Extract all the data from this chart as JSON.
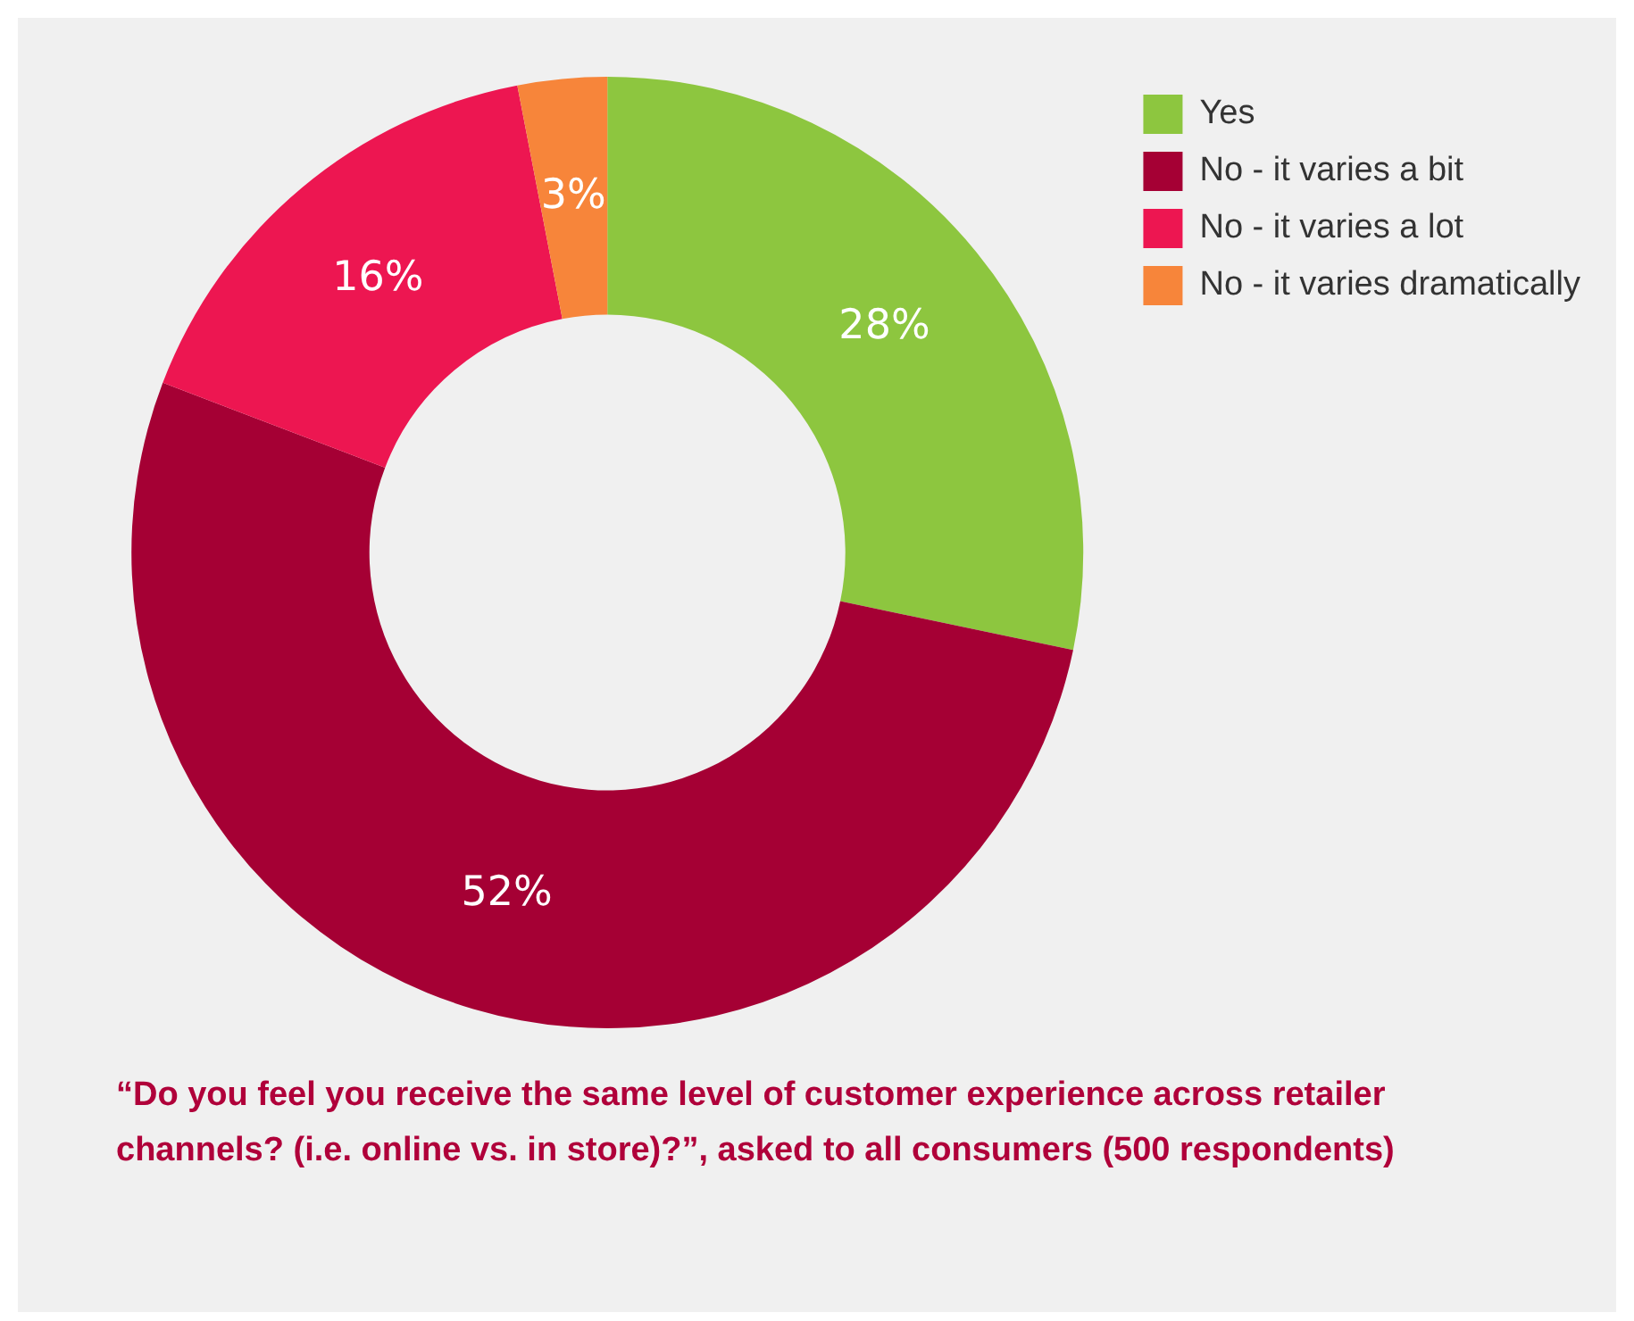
{
  "chart_data": {
    "type": "donut",
    "categories": [
      "Yes",
      "No - it varies a bit",
      "No - it varies a lot",
      "No - it varies dramatically"
    ],
    "values": [
      28,
      52,
      16,
      3
    ],
    "colors": [
      "#8dc63f",
      "#a50034",
      "#ed1651",
      "#f7853a"
    ],
    "value_labels": [
      "28%",
      "52%",
      "16%",
      "3%"
    ],
    "legend": "top right",
    "annotations": [
      "“Do you feel you receive the same level of customer experience across retailer channels? (i.e. online vs. in store)?”, asked to all consumers (500 respondents)"
    ]
  }
}
